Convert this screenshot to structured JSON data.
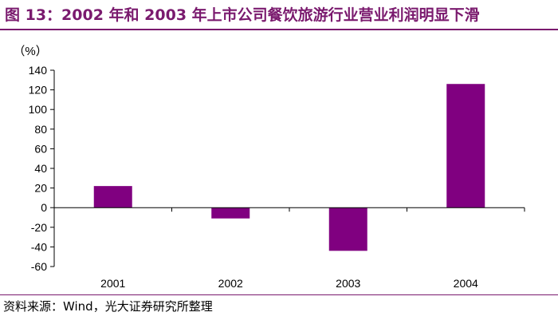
{
  "header": {
    "title": "图 13：2002 年和 2003 年上市公司餐饮旅游行业营业利润明显下滑"
  },
  "chart_data": {
    "type": "bar",
    "title": "图 13：2002 年和 2003 年上市公司餐饮旅游行业营业利润明显下滑",
    "ylabel": "（%）",
    "xlabel": "",
    "categories": [
      "2001",
      "2002",
      "2003",
      "2004"
    ],
    "values": [
      22,
      -11,
      -44,
      126
    ],
    "ylim": [
      -60,
      140
    ],
    "yticks": [
      140,
      120,
      100,
      80,
      60,
      40,
      20,
      0,
      -20,
      -40,
      -60
    ],
    "grid": false,
    "legend": "none"
  },
  "footer": {
    "source": "资料来源：Wind，光大证券研究所整理"
  },
  "colors": {
    "bar": "#800080",
    "brand": "#7a1a6e"
  }
}
